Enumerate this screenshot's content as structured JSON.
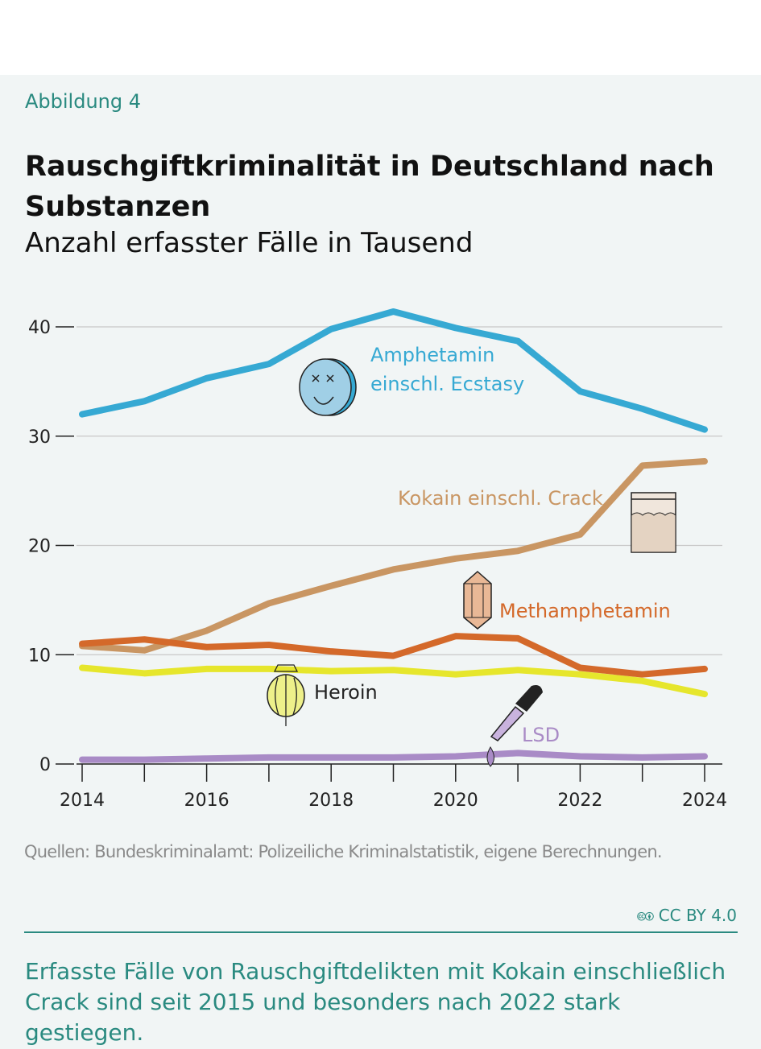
{
  "figure_label": "Abbildung 4",
  "source": "Quellen: Bundeskriminalamt: Polizeiliche Kriminalstatistik, eigene Berechnungen.",
  "license": "CC BY 4.0",
  "caption": "Erfasste Fälle von Rauschgiftdelikten mit Kokain einschließlich Crack sind seit 2015 und besonders nach 2022 stark gestiegen.",
  "chart_data": {
    "type": "line",
    "title": "Rauschgiftkriminalität in Deutschland nach Substanzen",
    "subtitle": "Anzahl erfasster Fälle in Tausend",
    "x": [
      2014,
      2015,
      2016,
      2017,
      2018,
      2019,
      2020,
      2021,
      2022,
      2023,
      2024
    ],
    "x_ticks": [
      "2014",
      "2016",
      "2018",
      "2020",
      "2022",
      "2024"
    ],
    "y_ticks": [
      "0",
      "10",
      "20",
      "30",
      "40"
    ],
    "ylim": [
      0,
      40
    ],
    "grid": true,
    "series": [
      {
        "name": "Amphetamin einschl. Ecstasy",
        "name_lines": [
          "Amphetamin",
          "einschl. Ecstasy"
        ],
        "color": "#36a9d3",
        "icon": "pill-icon",
        "values": [
          32.0,
          33.2,
          35.3,
          36.6,
          39.8,
          41.4,
          39.9,
          38.7,
          34.1,
          32.5,
          30.6
        ]
      },
      {
        "name": "Kokain einschl. Crack",
        "color": "#c99663",
        "icon": "powder-bag-icon",
        "values": [
          10.8,
          10.4,
          12.2,
          14.7,
          16.3,
          17.8,
          18.8,
          19.5,
          21.0,
          27.3,
          27.7
        ]
      },
      {
        "name": "Methamphetamin",
        "color": "#d4692a",
        "icon": "crystal-icon",
        "values": [
          11.0,
          11.4,
          10.7,
          10.9,
          10.3,
          9.9,
          11.7,
          11.5,
          8.8,
          8.2,
          8.7
        ]
      },
      {
        "name": "Heroin",
        "color": "#e6e62c",
        "label_color": "#222222",
        "icon": "poppy-icon",
        "values": [
          8.8,
          8.3,
          8.7,
          8.7,
          8.5,
          8.6,
          8.2,
          8.6,
          8.2,
          7.6,
          6.4
        ]
      },
      {
        "name": "LSD",
        "color": "#a98bc6",
        "icon": "dropper-icon",
        "values": [
          0.4,
          0.4,
          0.5,
          0.6,
          0.6,
          0.6,
          0.7,
          1.0,
          0.7,
          0.6,
          0.7
        ]
      }
    ]
  }
}
